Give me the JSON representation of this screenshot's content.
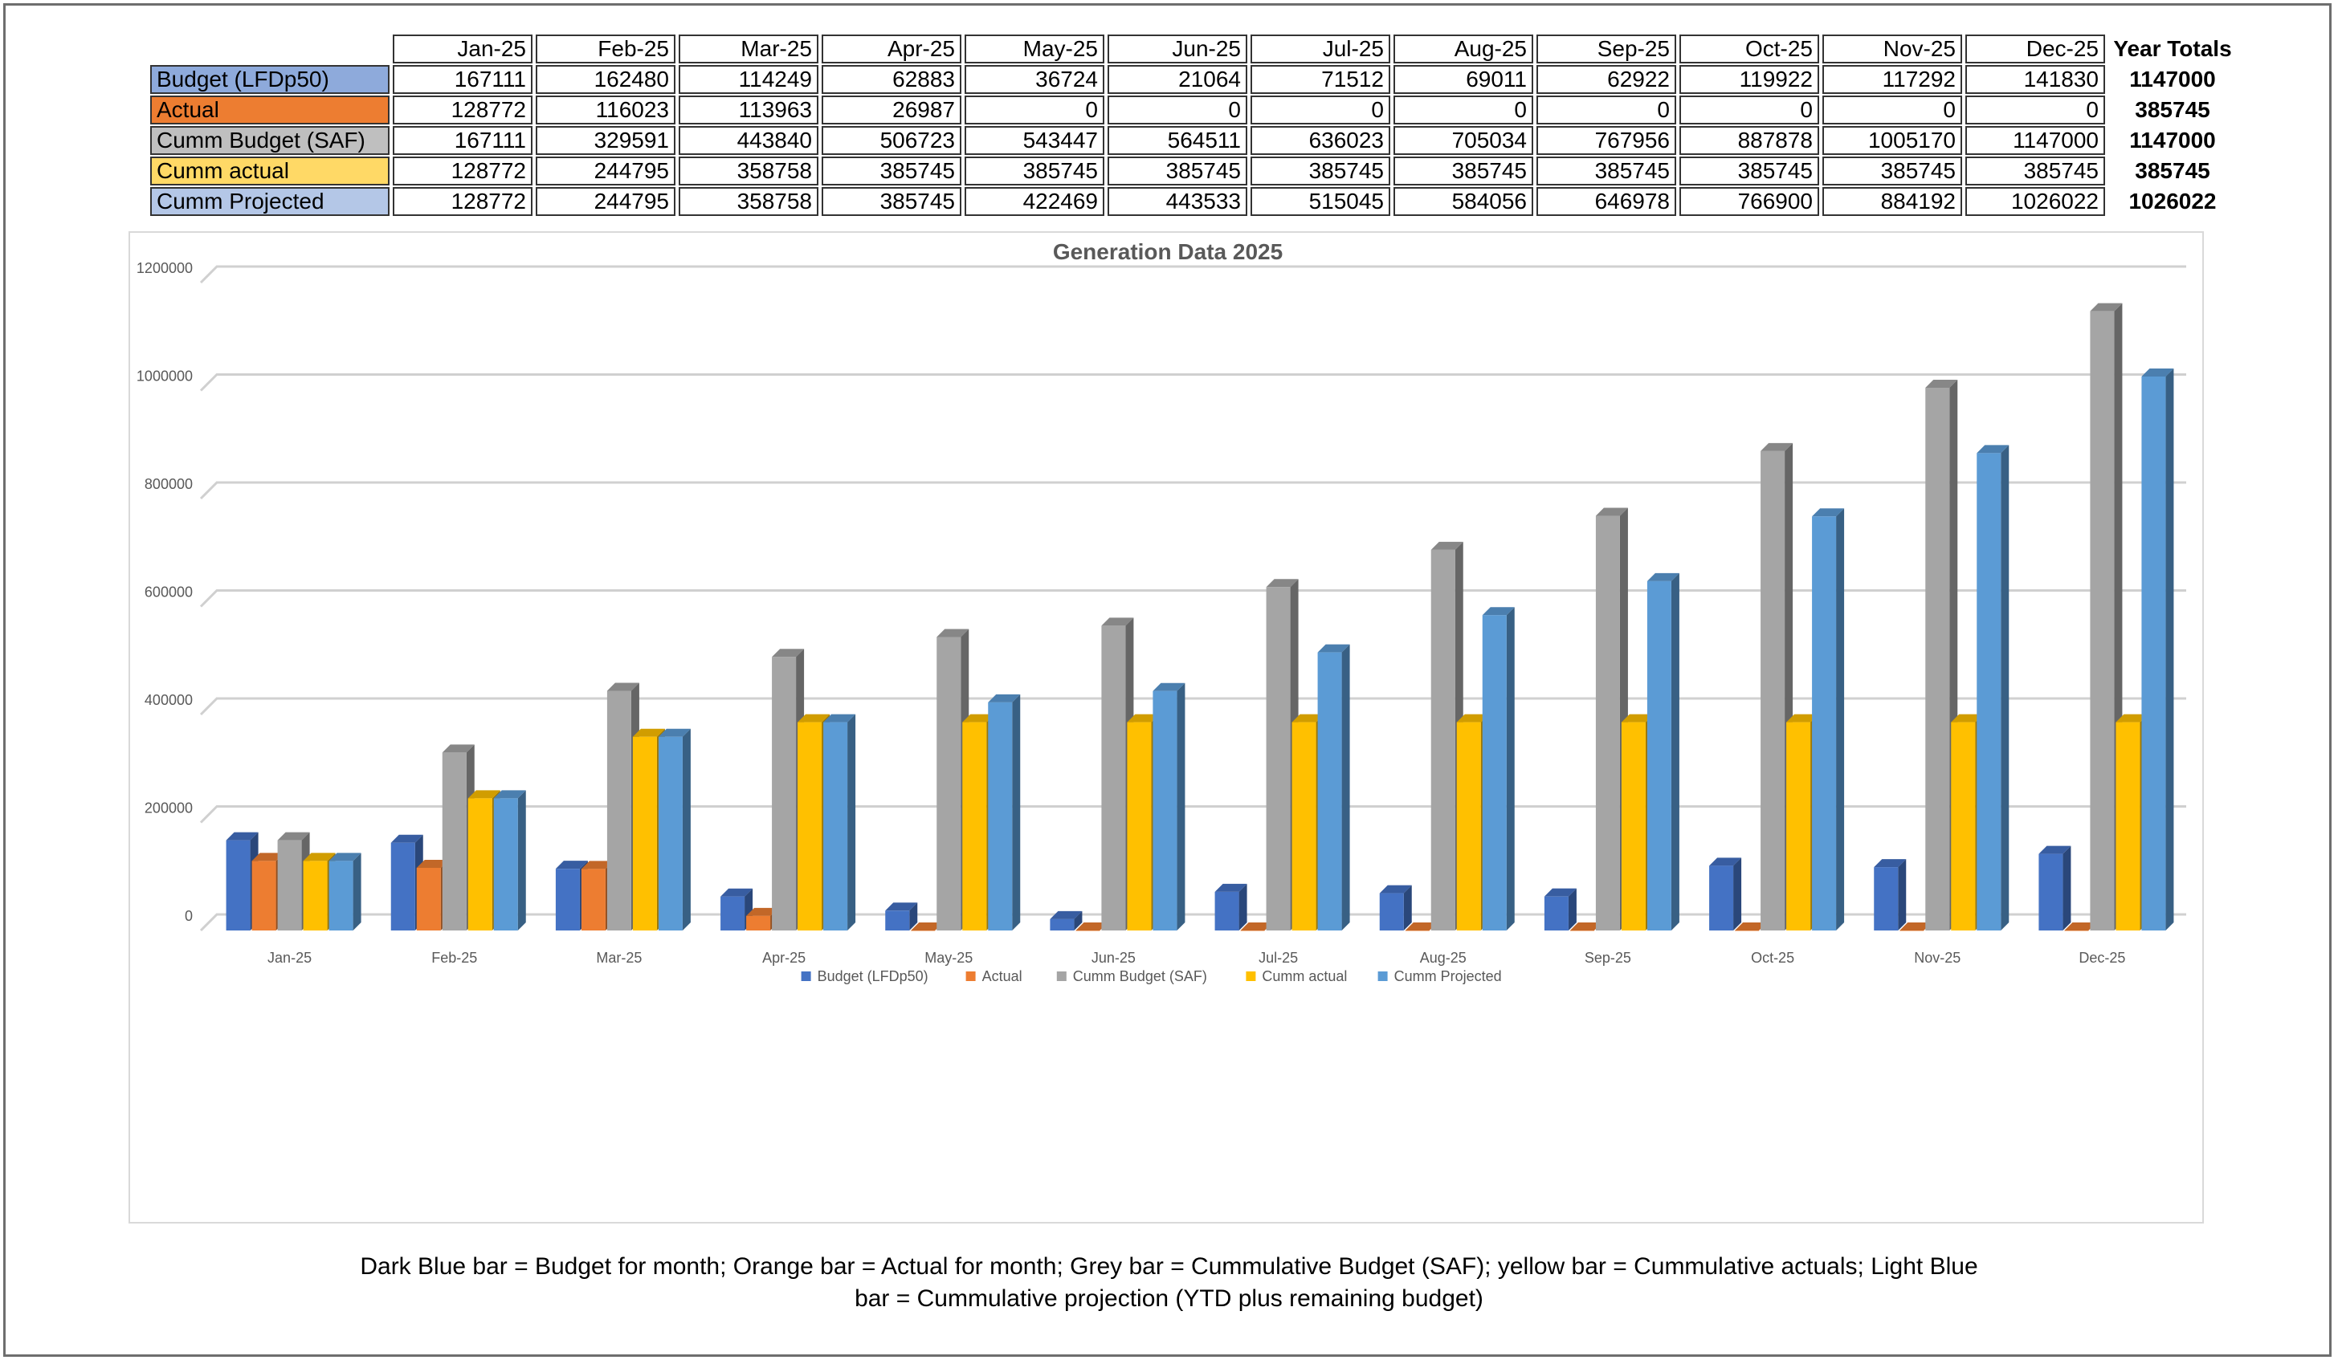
{
  "table": {
    "months": [
      "Jan-25",
      "Feb-25",
      "Mar-25",
      "Apr-25",
      "May-25",
      "Jun-25",
      "Jul-25",
      "Aug-25",
      "Sep-25",
      "Oct-25",
      "Nov-25",
      "Dec-25"
    ],
    "totals_header": "Year Totals",
    "rows": [
      {
        "label": "Budget (LFDp50)",
        "color": "#8eaadb",
        "values": [
          167111,
          162480,
          114249,
          62883,
          36724,
          21064,
          71512,
          69011,
          62922,
          119922,
          117292,
          141830
        ],
        "total": 1147000
      },
      {
        "label": "Actual",
        "color": "#ed7d31",
        "values": [
          128772,
          116023,
          113963,
          26987,
          0,
          0,
          0,
          0,
          0,
          0,
          0,
          0
        ],
        "total": 385745
      },
      {
        "label": "Cumm  Budget (SAF)",
        "color": "#bfbfbf",
        "values": [
          167111,
          329591,
          443840,
          506723,
          543447,
          564511,
          636023,
          705034,
          767956,
          887878,
          1005170,
          1147000
        ],
        "total": 1147000
      },
      {
        "label": "Cumm actual",
        "color": "#ffd966",
        "values": [
          128772,
          244795,
          358758,
          385745,
          385745,
          385745,
          385745,
          385745,
          385745,
          385745,
          385745,
          385745
        ],
        "total": 385745
      },
      {
        "label": "Cumm Projected",
        "color": "#b4c7e7",
        "values": [
          128772,
          244795,
          358758,
          385745,
          422469,
          443533,
          515045,
          584056,
          646978,
          766900,
          884192,
          1026022
        ],
        "total": 1026022
      }
    ]
  },
  "chart_data": {
    "type": "bar",
    "title": "Generation Data 2025",
    "xlabel": "",
    "ylabel": "",
    "ylim": [
      0,
      1200000
    ],
    "yticks": [
      0,
      200000,
      400000,
      600000,
      800000,
      1000000,
      1200000
    ],
    "grid": true,
    "legend_position": "bottom",
    "categories": [
      "Jan-25",
      "Feb-25",
      "Mar-25",
      "Apr-25",
      "May-25",
      "Jun-25",
      "Jul-25",
      "Aug-25",
      "Sep-25",
      "Oct-25",
      "Nov-25",
      "Dec-25"
    ],
    "series": [
      {
        "name": "Budget (LFDp50)",
        "color": "#4472c4",
        "values": [
          167111,
          162480,
          114249,
          62883,
          36724,
          21064,
          71512,
          69011,
          62922,
          119922,
          117292,
          141830
        ]
      },
      {
        "name": "Actual",
        "color": "#ed7d31",
        "values": [
          128772,
          116023,
          113963,
          26987,
          0,
          0,
          0,
          0,
          0,
          0,
          0,
          0
        ]
      },
      {
        "name": "Cumm  Budget (SAF)",
        "color": "#a5a5a5",
        "values": [
          167111,
          329591,
          443840,
          506723,
          543447,
          564511,
          636023,
          705034,
          767956,
          887878,
          1005170,
          1147000
        ]
      },
      {
        "name": "Cumm actual",
        "color": "#ffc000",
        "values": [
          128772,
          244795,
          358758,
          385745,
          385745,
          385745,
          385745,
          385745,
          385745,
          385745,
          385745,
          385745
        ]
      },
      {
        "name": "Cumm Projected",
        "color": "#5b9bd5",
        "values": [
          128772,
          244795,
          358758,
          385745,
          422469,
          443533,
          515045,
          584056,
          646978,
          766900,
          884192,
          1026022
        ]
      }
    ]
  },
  "caption": {
    "line1": "Dark Blue bar = Budget for month; Orange bar = Actual for month; Grey bar = Cummulative Budget (SAF); yellow bar = Cummulative actuals; Light Blue",
    "line2": "bar = Cummulative projection (YTD plus remaining budget)"
  }
}
